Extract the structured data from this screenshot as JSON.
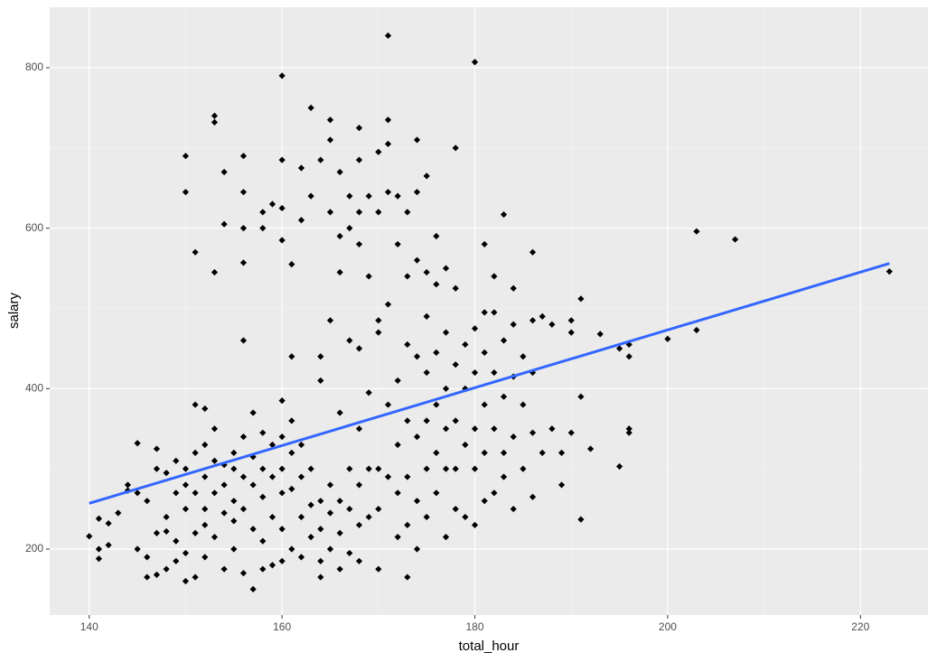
{
  "chart_data": {
    "type": "scatter",
    "x_label": "total_hour",
    "y_label": "salary",
    "xlim": [
      135.9,
      227.0
    ],
    "ylim": [
      117.8,
      875.4
    ],
    "xticks": [
      140,
      160,
      180,
      200,
      220
    ],
    "yticks": [
      200,
      400,
      600,
      800
    ],
    "grid": true,
    "color": "#000000",
    "trend_line": {
      "color": "#3366ff",
      "x": [
        140,
        223
      ],
      "y": [
        257,
        556
      ]
    },
    "x": [
      140,
      141,
      141,
      141,
      142,
      142,
      143,
      144,
      144,
      145,
      145,
      145,
      146,
      146,
      146,
      147,
      147,
      147,
      147,
      148,
      148,
      148,
      148,
      149,
      149,
      149,
      149,
      150,
      150,
      150,
      150,
      150,
      150,
      150,
      151,
      151,
      151,
      151,
      151,
      151,
      152,
      152,
      152,
      152,
      152,
      152,
      153,
      153,
      153,
      153,
      153,
      153,
      153,
      154,
      154,
      154,
      154,
      154,
      154,
      155,
      155,
      155,
      155,
      155,
      156,
      156,
      156,
      156,
      156,
      156,
      156,
      156,
      156,
      157,
      157,
      157,
      157,
      157,
      158,
      158,
      158,
      158,
      158,
      158,
      158,
      159,
      159,
      159,
      159,
      159,
      160,
      160,
      160,
      160,
      160,
      160,
      160,
      160,
      160,
      160,
      161,
      161,
      161,
      161,
      161,
      161,
      162,
      162,
      162,
      162,
      162,
      162,
      163,
      163,
      163,
      163,
      163,
      164,
      164,
      164,
      164,
      164,
      164,
      164,
      165,
      165,
      165,
      165,
      165,
      165,
      165,
      166,
      166,
      166,
      166,
      166,
      166,
      166,
      167,
      167,
      167,
      167,
      167,
      167,
      168,
      168,
      168,
      168,
      168,
      168,
      168,
      168,
      168,
      169,
      169,
      169,
      169,
      169,
      170,
      170,
      170,
      170,
      170,
      170,
      170,
      171,
      171,
      171,
      171,
      171,
      171,
      171,
      172,
      172,
      172,
      172,
      172,
      172,
      173,
      173,
      173,
      173,
      173,
      173,
      173,
      174,
      174,
      174,
      174,
      174,
      174,
      174,
      175,
      175,
      175,
      175,
      175,
      175,
      175,
      176,
      176,
      176,
      176,
      176,
      176,
      177,
      177,
      177,
      177,
      177,
      177,
      178,
      178,
      178,
      178,
      178,
      178,
      179,
      179,
      179,
      179,
      180,
      180,
      180,
      180,
      180,
      180,
      181,
      181,
      181,
      181,
      181,
      181,
      182,
      182,
      182,
      182,
      182,
      183,
      183,
      183,
      183,
      183,
      184,
      184,
      184,
      184,
      184,
      185,
      185,
      185,
      186,
      186,
      186,
      186,
      186,
      187,
      187,
      188,
      188,
      189,
      189,
      190,
      190,
      190,
      191,
      191,
      191,
      192,
      193,
      195,
      195,
      196,
      196,
      196,
      196,
      200,
      203,
      203,
      207,
      223
    ],
    "y": [
      216,
      200,
      188,
      238,
      205,
      232,
      245,
      280,
      273,
      332,
      270,
      200,
      260,
      165,
      190,
      325,
      300,
      220,
      168,
      295,
      240,
      222,
      175,
      310,
      270,
      210,
      185,
      690,
      645,
      300,
      280,
      250,
      195,
      160,
      380,
      570,
      320,
      270,
      220,
      165,
      375,
      330,
      290,
      250,
      230,
      190,
      740,
      732,
      545,
      350,
      310,
      270,
      215,
      670,
      605,
      305,
      280,
      245,
      175,
      320,
      300,
      260,
      235,
      200,
      690,
      645,
      600,
      557,
      460,
      340,
      290,
      250,
      170,
      370,
      315,
      280,
      225,
      150,
      620,
      600,
      345,
      300,
      265,
      210,
      175,
      630,
      330,
      290,
      240,
      180,
      790,
      685,
      625,
      585,
      385,
      340,
      300,
      270,
      225,
      185,
      555,
      440,
      360,
      320,
      275,
      200,
      675,
      610,
      330,
      290,
      240,
      190,
      750,
      640,
      300,
      255,
      215,
      685,
      440,
      410,
      260,
      225,
      185,
      165,
      735,
      710,
      620,
      485,
      280,
      245,
      200,
      670,
      590,
      545,
      370,
      260,
      220,
      175,
      640,
      600,
      460,
      300,
      250,
      195,
      725,
      685,
      620,
      580,
      450,
      350,
      280,
      230,
      185,
      640,
      540,
      395,
      300,
      240,
      695,
      620,
      485,
      470,
      300,
      250,
      175,
      840,
      735,
      705,
      645,
      505,
      380,
      290,
      640,
      580,
      410,
      330,
      270,
      215,
      620,
      540,
      455,
      360,
      290,
      230,
      165,
      710,
      645,
      560,
      440,
      340,
      260,
      200,
      665,
      545,
      490,
      420,
      360,
      300,
      240,
      590,
      530,
      445,
      380,
      320,
      270,
      550,
      470,
      400,
      350,
      300,
      215,
      700,
      525,
      430,
      360,
      300,
      250,
      455,
      400,
      330,
      240,
      807,
      475,
      420,
      350,
      300,
      230,
      580,
      495,
      445,
      380,
      320,
      260,
      540,
      495,
      420,
      350,
      270,
      617,
      460,
      390,
      320,
      290,
      525,
      480,
      415,
      340,
      250,
      440,
      380,
      300,
      570,
      485,
      420,
      345,
      265,
      490,
      320,
      480,
      350,
      320,
      280,
      485,
      470,
      345,
      512,
      390,
      237,
      325,
      468,
      450,
      303,
      455,
      440,
      350,
      345,
      462,
      596,
      473,
      586,
      546
    ]
  }
}
